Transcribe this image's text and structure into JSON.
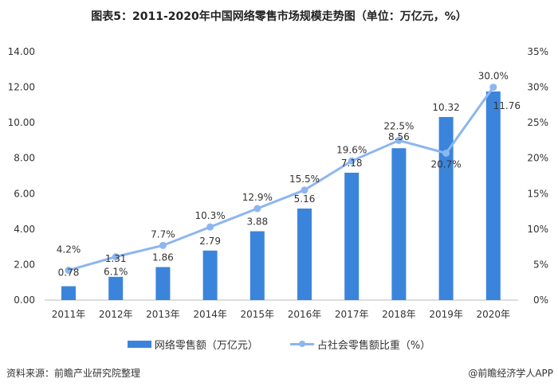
{
  "chart_data": {
    "type": "bar+line",
    "title": "图表5：2011-2020年中国网络零售市场规模走势图（单位：万亿元，%）",
    "categories": [
      "2011年",
      "2012年",
      "2013年",
      "2014年",
      "2015年",
      "2016年",
      "2017年",
      "2018年",
      "2019年",
      "2020年"
    ],
    "series": [
      {
        "name": "网络零售额（万亿元）",
        "type": "bar",
        "axis": "left",
        "color": "#3b84dc",
        "values": [
          0.78,
          1.31,
          1.86,
          2.79,
          3.88,
          5.16,
          7.18,
          8.56,
          10.32,
          11.76
        ],
        "labels": [
          "0.78",
          "1.31",
          "1.86",
          "2.79",
          "3.88",
          "5.16",
          "7.18",
          "8.56",
          "10.32",
          "11.76"
        ]
      },
      {
        "name": "占社会零售额比重（%）",
        "type": "line",
        "axis": "right",
        "color": "#8cb6ef",
        "values": [
          4.2,
          6.1,
          7.7,
          10.3,
          12.9,
          15.5,
          19.6,
          22.5,
          20.7,
          30.0
        ],
        "labels": [
          "4.2%",
          "6.1%",
          "7.7%",
          "10.3%",
          "12.9%",
          "15.5%",
          "19.6%",
          "22.5%",
          "20.7%",
          "30.0%"
        ]
      }
    ],
    "ylim_left": [
      0,
      14
    ],
    "yticks_left": [
      "0.00",
      "2.00",
      "4.00",
      "6.00",
      "8.00",
      "10.00",
      "12.00",
      "14.00"
    ],
    "ylim_right": [
      0,
      35
    ],
    "yticks_right": [
      "0%",
      "5%",
      "10%",
      "15%",
      "20%",
      "25%",
      "30%",
      "35%"
    ],
    "grid": false,
    "legend": "bottom"
  },
  "footer": {
    "source": "资料来源：前瞻产业研究院整理",
    "credit": "@前瞻经济学人APP"
  }
}
